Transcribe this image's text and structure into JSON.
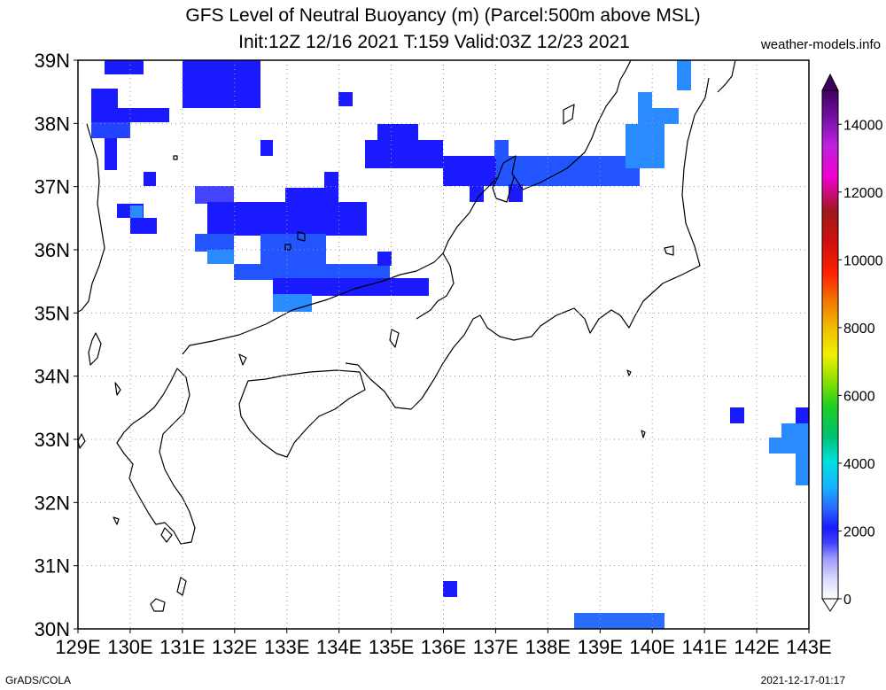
{
  "title": {
    "line1": "GFS Level of Neutral Buoyancy (m) (Parcel:500m above MSL)",
    "line2": "Init:12Z 12/16 2021 T:159 Valid:03Z 12/23 2021"
  },
  "site": "weather-models.info",
  "footer": {
    "left": "GrADS/COLA",
    "right": "2021-12-17-01:17"
  },
  "map": {
    "lon_ticks": [
      "129E",
      "130E",
      "131E",
      "132E",
      "133E",
      "134E",
      "135E",
      "136E",
      "137E",
      "138E",
      "139E",
      "140E",
      "141E",
      "142E",
      "143E"
    ],
    "lat_ticks": [
      "30N",
      "31N",
      "32N",
      "33N",
      "34N",
      "35N",
      "36N",
      "37N",
      "38N",
      "39N"
    ],
    "lon_range": [
      129,
      143
    ],
    "lat_range": [
      30,
      39
    ],
    "grid": "dotted",
    "colors": {
      "coast": "#000000",
      "grid": "#999999",
      "lnb_low": "#1a1aff",
      "lnb_mid": "#2255ff",
      "lnb_high": "#2a8aff"
    }
  },
  "colorbar": {
    "ticks": [
      "0",
      "2000",
      "4000",
      "6000",
      "8000",
      "10000",
      "12000",
      "14000"
    ],
    "range": [
      0,
      15000
    ],
    "stops": [
      "#ffffff",
      "#d8d8ff",
      "#9a9aff",
      "#4040ff",
      "#1a1aff",
      "#2a6cff",
      "#14b4ff",
      "#00e0e0",
      "#00c070",
      "#20d020",
      "#90e000",
      "#f0f000",
      "#f0c000",
      "#f08000",
      "#ff2000",
      "#d01010",
      "#a01818",
      "#f000d0",
      "#c020e0",
      "#7010a0",
      "#400060"
    ]
  }
}
